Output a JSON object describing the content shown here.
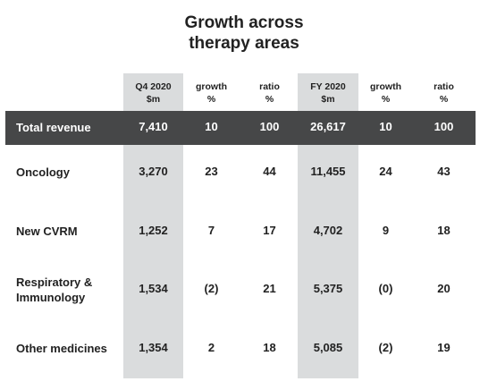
{
  "title": {
    "line1": "Growth across",
    "line2": "therapy areas"
  },
  "columns": [
    {
      "line1": "Q4 2020",
      "line2": "$m"
    },
    {
      "line1": "growth",
      "line2": "%"
    },
    {
      "line1": "ratio",
      "line2": "%"
    },
    {
      "line1": "FY 2020",
      "line2": "$m"
    },
    {
      "line1": "growth",
      "line2": "%"
    },
    {
      "line1": "ratio",
      "line2": "%"
    }
  ],
  "rows": [
    {
      "label": "Total revenue",
      "values": [
        "7,410",
        "10",
        "100",
        "26,617",
        "10",
        "100"
      ]
    },
    {
      "label": "Oncology",
      "values": [
        "3,270",
        "23",
        "44",
        "11,455",
        "24",
        "43"
      ]
    },
    {
      "label": "New CVRM",
      "values": [
        "1,252",
        "7",
        "17",
        "4,702",
        "9",
        "18"
      ]
    },
    {
      "label_lines": [
        "Respiratory &",
        "Immunology"
      ],
      "values": [
        "1,534",
        "(2)",
        "21",
        "5,375",
        "(0)",
        "20"
      ]
    },
    {
      "label": "Other medicines",
      "values": [
        "1,354",
        "2",
        "18",
        "5,085",
        "(2)",
        "19"
      ]
    }
  ],
  "colors": {
    "highlight_band": "#464748",
    "shaded_column": "#dadcdd",
    "text": "#222222"
  }
}
